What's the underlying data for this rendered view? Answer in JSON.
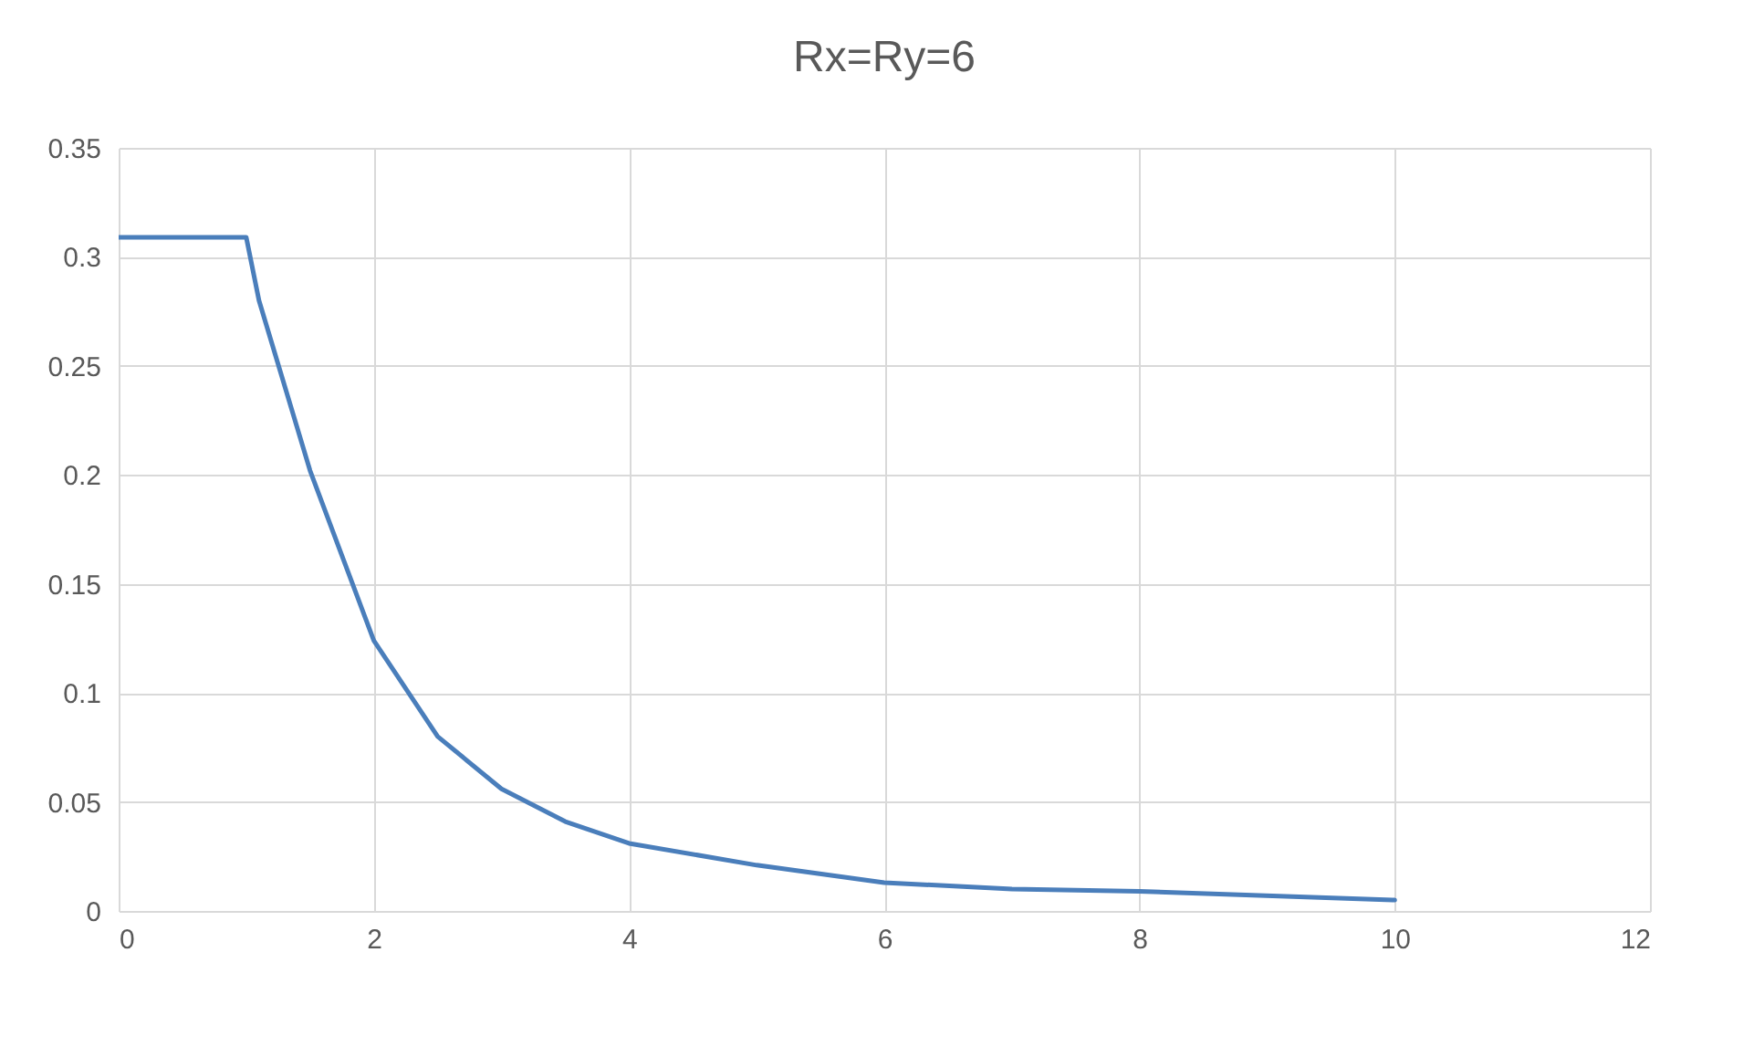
{
  "chart_data": {
    "type": "line",
    "title": "Rx=Ry=6",
    "x": [
      0,
      1,
      1.1,
      1.5,
      2,
      2.5,
      3,
      3.5,
      4,
      5,
      6,
      7,
      8,
      10
    ],
    "series": [
      {
        "color": "#4a7ebb",
        "values": [
          0.309,
          0.309,
          0.28,
          0.202,
          0.124,
          0.08,
          0.056,
          0.041,
          0.031,
          0.021,
          0.013,
          0.01,
          0.009,
          0.005
        ]
      }
    ],
    "xlim": [
      0,
      12
    ],
    "xticks": [
      0,
      2,
      4,
      6,
      8,
      10,
      12
    ],
    "ylim": [
      0,
      0.35
    ],
    "yticks": [
      0,
      0.05,
      0.1,
      0.15,
      0.2,
      0.25,
      0.3,
      0.35
    ],
    "grid": true,
    "marker": "none",
    "line_style": "solid"
  }
}
